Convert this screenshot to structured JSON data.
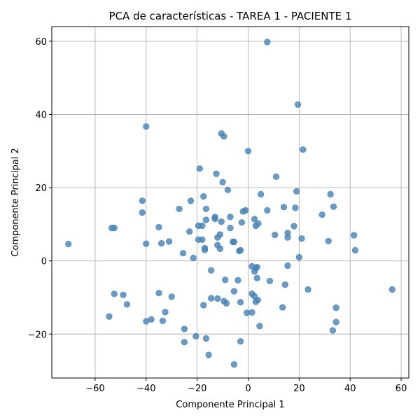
{
  "chart_data": {
    "type": "scatter",
    "title": "PCA de características - TAREA 1 - PACIENTE 1",
    "xlabel": "Componente Principal 1",
    "ylabel": "Componente Principal 2",
    "xlim": [
      -77,
      63
    ],
    "ylim": [
      -32,
      64
    ],
    "xticks": [
      -60,
      -40,
      -20,
      0,
      20,
      40,
      60
    ],
    "yticks": [
      -20,
      0,
      20,
      40,
      60
    ],
    "xtick_labels": [
      "−60",
      "−40",
      "−20",
      "0",
      "20",
      "40",
      "60"
    ],
    "ytick_labels": [
      "−20",
      "0",
      "20",
      "40",
      "60"
    ],
    "grid": true,
    "marker_color": "#4682b4",
    "points": [
      [
        7.5,
        59.8
      ],
      [
        19.5,
        42.7
      ],
      [
        -40,
        36.7
      ],
      [
        -10.5,
        34.8
      ],
      [
        -9.5,
        34
      ],
      [
        0,
        30
      ],
      [
        21.5,
        30.4
      ],
      [
        -19,
        25.2
      ],
      [
        -12.5,
        23.8
      ],
      [
        11,
        23
      ],
      [
        -10,
        21.5
      ],
      [
        -8,
        19.4
      ],
      [
        19,
        19
      ],
      [
        5,
        18.2
      ],
      [
        32.3,
        18.2
      ],
      [
        -17.5,
        17.6
      ],
      [
        -41.5,
        16.4
      ],
      [
        -22.5,
        16.4
      ],
      [
        -27,
        14.2
      ],
      [
        -16.5,
        14.2
      ],
      [
        -41.5,
        13.2
      ],
      [
        -1,
        13.8
      ],
      [
        -2,
        13.5
      ],
      [
        7.5,
        13.8
      ],
      [
        14,
        14.7
      ],
      [
        18.5,
        14.5
      ],
      [
        33.5,
        14.8
      ],
      [
        29,
        12.6
      ],
      [
        -13,
        12
      ],
      [
        -13,
        11.5
      ],
      [
        -16.5,
        11.2
      ],
      [
        -7,
        12
      ],
      [
        -10.5,
        10.7
      ],
      [
        2.5,
        11.4
      ],
      [
        -2.5,
        10.5
      ],
      [
        4,
        10.2
      ],
      [
        -35,
        9.2
      ],
      [
        -53.5,
        9
      ],
      [
        -52.5,
        9
      ],
      [
        -19.5,
        9.6
      ],
      [
        -18,
        9.6
      ],
      [
        3,
        9.6
      ],
      [
        18,
        9.5
      ],
      [
        -7,
        9
      ],
      [
        -23,
        8
      ],
      [
        -11,
        7.2
      ],
      [
        10.5,
        7.1
      ],
      [
        15.5,
        7.6
      ],
      [
        15.5,
        6.4
      ],
      [
        -12,
        6.4
      ],
      [
        41.5,
        7
      ],
      [
        -19.5,
        5.8
      ],
      [
        -18,
        5.8
      ],
      [
        21,
        6.1
      ],
      [
        -6,
        5.2
      ],
      [
        -5.5,
        5.2
      ],
      [
        -31,
        5.3
      ],
      [
        -34,
        4.8
      ],
      [
        -40,
        4.7
      ],
      [
        -70.5,
        4.6
      ],
      [
        31.5,
        5.4
      ],
      [
        -12,
        4.3
      ],
      [
        -17,
        3.5
      ],
      [
        -17,
        3
      ],
      [
        -11,
        3.3
      ],
      [
        -3.5,
        2.7
      ],
      [
        -3,
        2.9
      ],
      [
        42,
        2.9
      ],
      [
        -25.5,
        2.1
      ],
      [
        -21.5,
        0.8
      ],
      [
        20,
        1
      ],
      [
        1.5,
        -1.5
      ],
      [
        3.5,
        -1.7
      ],
      [
        3,
        -2
      ],
      [
        2.5,
        -2.9
      ],
      [
        15.5,
        -1.3
      ],
      [
        -14.5,
        -2.6
      ],
      [
        -9,
        -5.2
      ],
      [
        -4,
        -5.3
      ],
      [
        3.5,
        -4.7
      ],
      [
        8.5,
        -5.5
      ],
      [
        14.5,
        -6.5
      ],
      [
        23.5,
        -7.8
      ],
      [
        56.5,
        -7.8
      ],
      [
        -5.5,
        -8.3
      ],
      [
        -52.5,
        -9
      ],
      [
        -35,
        -8.8
      ],
      [
        -49,
        -9.3
      ],
      [
        -30,
        -9.8
      ],
      [
        1.5,
        -9
      ],
      [
        2.5,
        -9.7
      ],
      [
        -14.5,
        -10.2
      ],
      [
        -12,
        -10.3
      ],
      [
        -9.5,
        -11
      ],
      [
        -8.5,
        -11.6
      ],
      [
        -3,
        -11.3
      ],
      [
        3,
        -11.2
      ],
      [
        3.8,
        -10.7
      ],
      [
        -47.5,
        -11.9
      ],
      [
        -17.5,
        -12.1
      ],
      [
        13.5,
        -12.7
      ],
      [
        34.5,
        -12.8
      ],
      [
        -32.5,
        -14
      ],
      [
        -0.5,
        -14.2
      ],
      [
        1.5,
        -14.1
      ],
      [
        -54.5,
        -15.2
      ],
      [
        -38,
        -16
      ],
      [
        -40,
        -16.5
      ],
      [
        -33.5,
        -16.4
      ],
      [
        34.5,
        -16.7
      ],
      [
        4.5,
        -17.8
      ],
      [
        -25,
        -18.6
      ],
      [
        33.2,
        -19
      ],
      [
        -20.5,
        -20.6
      ],
      [
        -16.5,
        -21.2
      ],
      [
        -25,
        -22.2
      ],
      [
        -3,
        -22
      ],
      [
        -15.5,
        -25.7
      ],
      [
        -5.5,
        -28.3
      ]
    ]
  }
}
